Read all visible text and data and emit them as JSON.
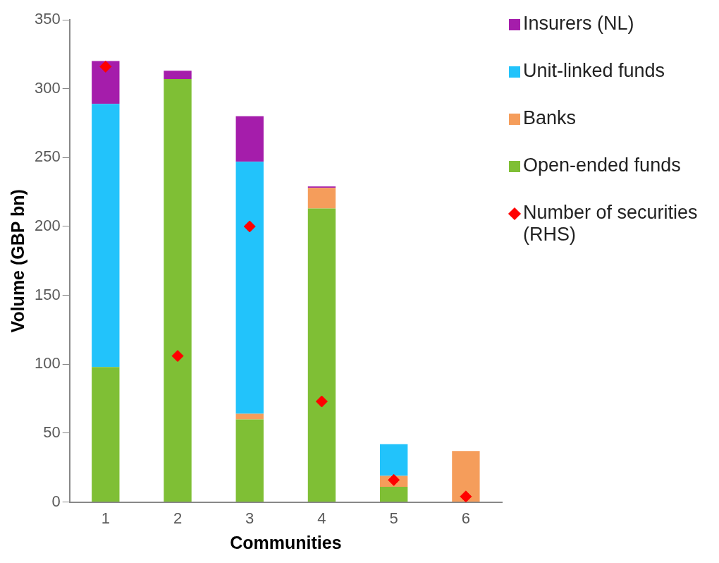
{
  "chart_data": {
    "type": "bar",
    "stacked": true,
    "xlabel": "Communities",
    "ylabel": "Volume (GBP bn)",
    "categories": [
      "1",
      "2",
      "3",
      "4",
      "5",
      "6"
    ],
    "ylim": [
      0,
      350
    ],
    "yticks": [
      0,
      50,
      100,
      150,
      200,
      250,
      300,
      350
    ],
    "grid": false,
    "legend": "right",
    "series": [
      {
        "name": "Open-ended funds",
        "color": "#7fbf35",
        "values": [
          98,
          307,
          60,
          213,
          11,
          0
        ]
      },
      {
        "name": "Banks",
        "color": "#f59d5b",
        "values": [
          0,
          0,
          4,
          15,
          8,
          37
        ]
      },
      {
        "name": "Unit-linked funds",
        "color": "#22c3fb",
        "values": [
          191,
          0,
          183,
          0,
          23,
          0
        ]
      },
      {
        "name": "Insurers (NL)",
        "color": "#a51dab",
        "values": [
          31,
          6,
          33,
          1,
          0,
          0
        ]
      },
      {
        "name": "Number of securities (RHS)",
        "type": "scatter",
        "marker": "diamond",
        "color": "#ff0000",
        "x": [
          "1",
          "2",
          "3",
          "4",
          "5",
          "6"
        ],
        "values": [
          316,
          106,
          200,
          73,
          16,
          4
        ]
      }
    ]
  }
}
